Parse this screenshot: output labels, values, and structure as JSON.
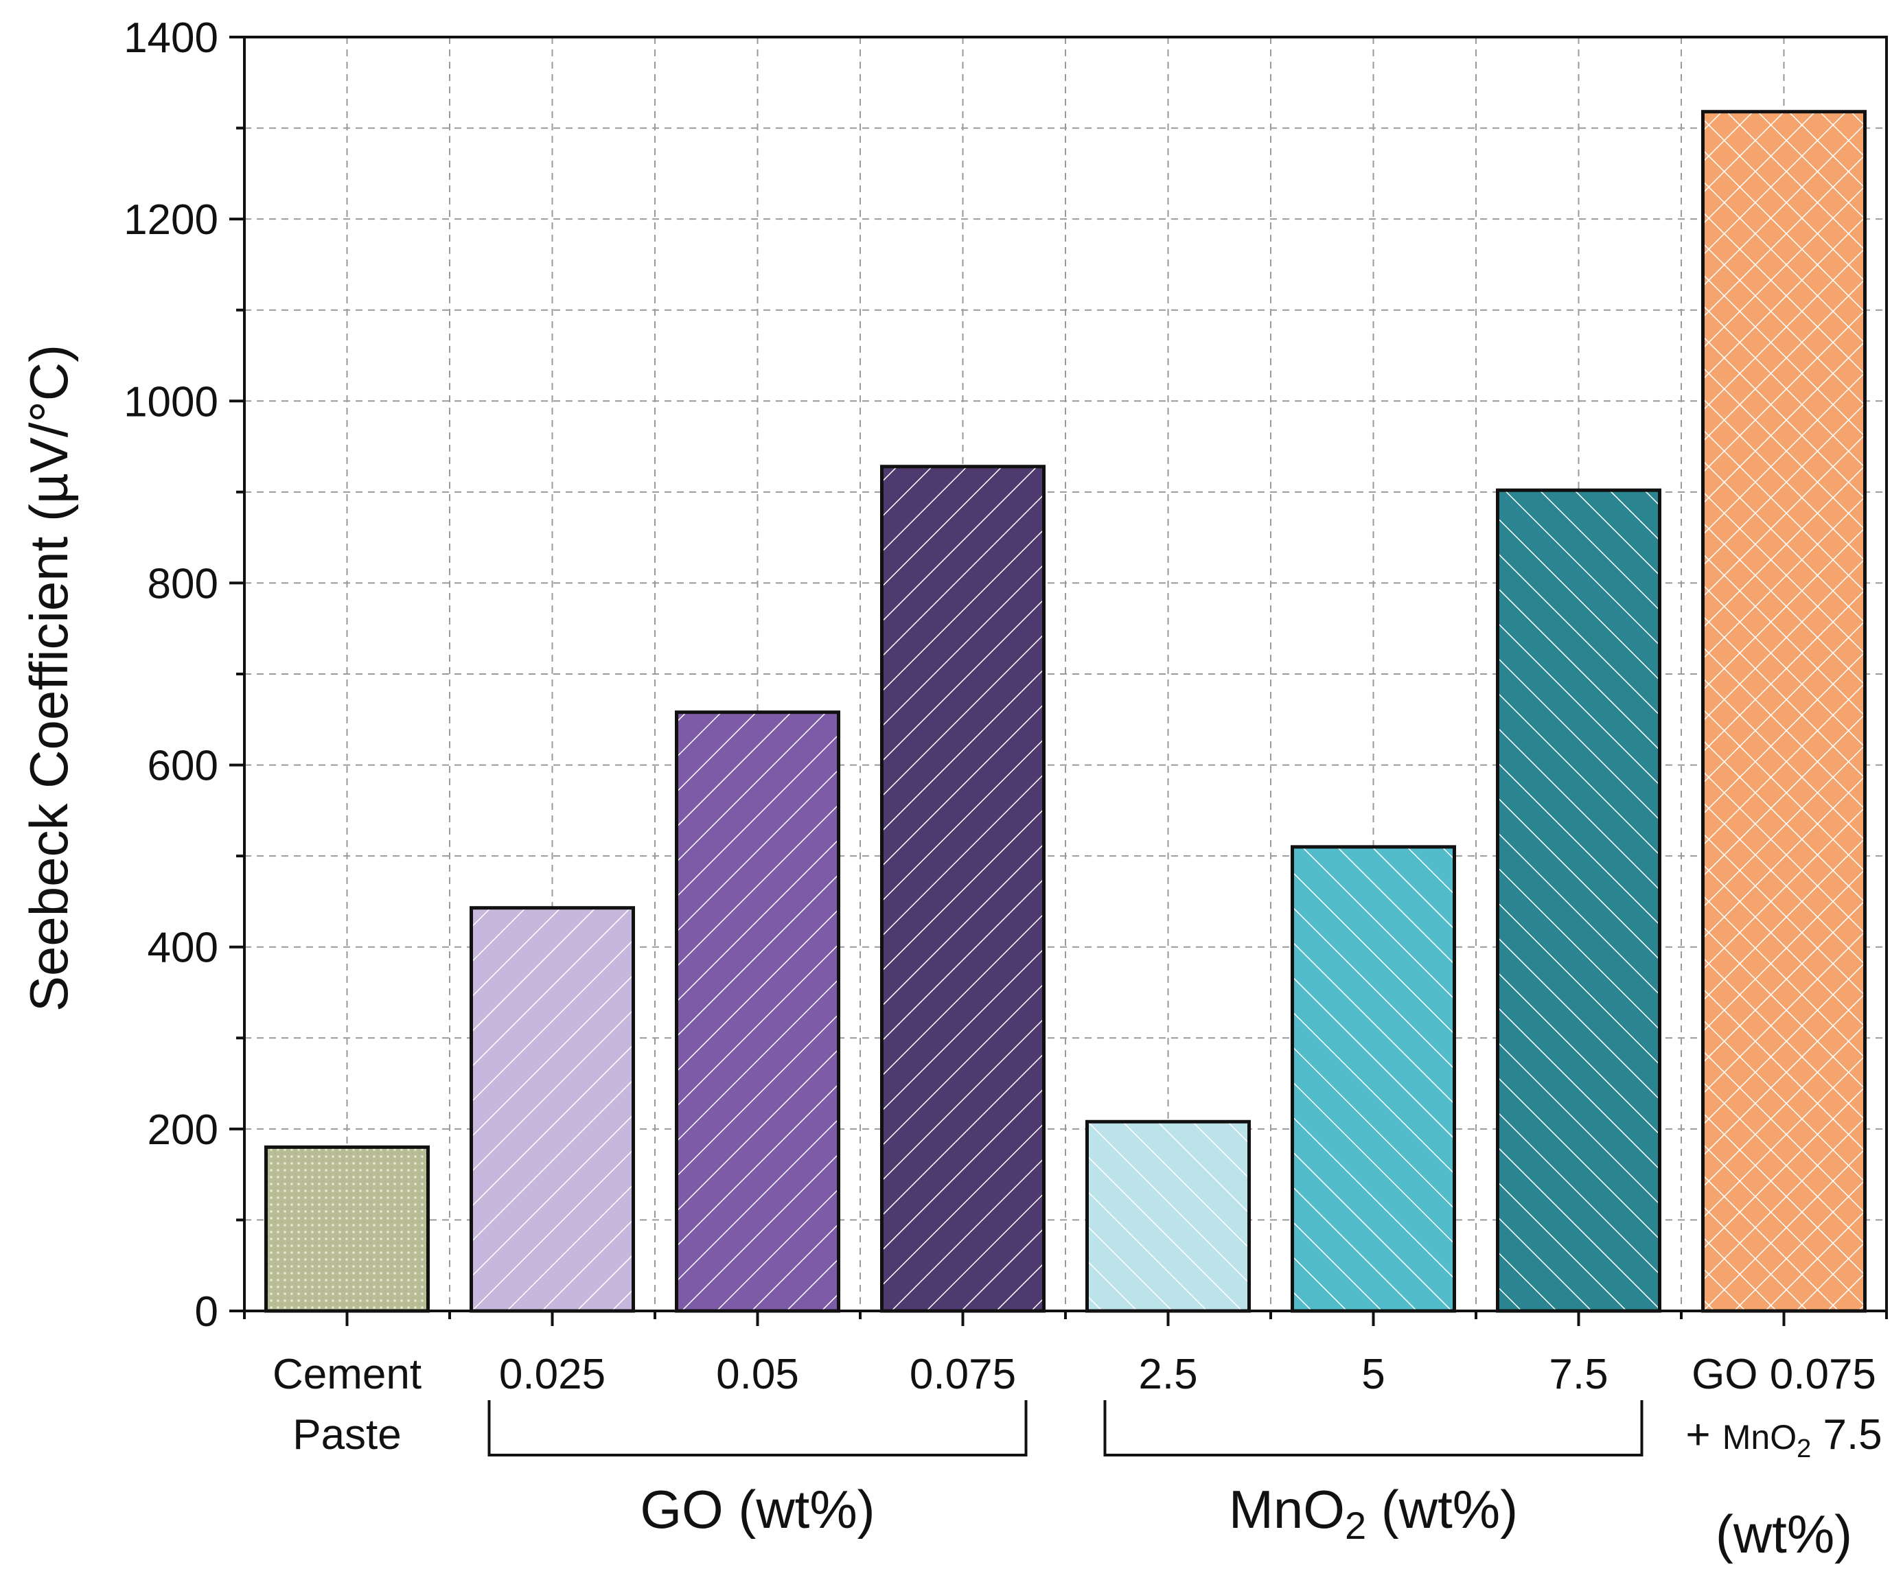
{
  "chart_data": {
    "type": "bar",
    "ylabel": "Seebeck Coefficient (µV/°C)",
    "ylim": [
      0,
      1400
    ],
    "yticks": [
      "0",
      "200",
      "400",
      "600",
      "800",
      "1000",
      "1200",
      "1400"
    ],
    "grid": true,
    "bars": [
      {
        "id": "cement-paste",
        "label": [
          "Cement",
          "Paste"
        ],
        "value": 180,
        "color": "#b8bd95",
        "pattern": "dots"
      },
      {
        "id": "go-0025",
        "label": [
          "0.025"
        ],
        "value": 443,
        "color": "#c8b7dc",
        "pattern": "diag-up"
      },
      {
        "id": "go-005",
        "label": [
          "0.05"
        ],
        "value": 658,
        "color": "#7d5ba6",
        "pattern": "diag-up"
      },
      {
        "id": "go-0075",
        "label": [
          "0.075"
        ],
        "value": 928,
        "color": "#4e3a6e",
        "pattern": "diag-up"
      },
      {
        "id": "mno2-25",
        "label": [
          "2.5"
        ],
        "value": 208,
        "color": "#bde3ea",
        "pattern": "diag-down"
      },
      {
        "id": "mno2-5",
        "label": [
          "5"
        ],
        "value": 510,
        "color": "#52bccb",
        "pattern": "diag-down"
      },
      {
        "id": "mno2-75",
        "label": [
          "7.5"
        ],
        "value": 902,
        "color": "#2a8590",
        "pattern": "diag-down"
      },
      {
        "id": "go-mno2-combo",
        "label": [
          "GO 0.075"
        ],
        "value": 1318,
        "color": "#f4a46c",
        "pattern": "cross"
      }
    ],
    "combo_label_line2": {
      "prefix": "+ ",
      "chem": "MnO",
      "sub": "2",
      "suffix": " 7.5"
    },
    "groups": [
      {
        "id": "go",
        "text": "GO (wt%)",
        "from": 1,
        "to": 3
      },
      {
        "id": "mno2",
        "chem": "MnO",
        "sub": "2",
        "rest": " (wt%)",
        "from": 4,
        "to": 6
      }
    ],
    "combo_unit": "(wt%)"
  }
}
